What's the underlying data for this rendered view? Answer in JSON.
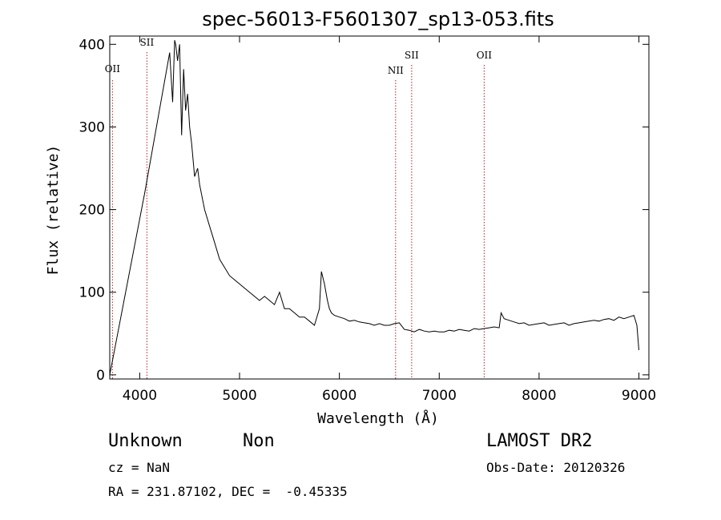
{
  "chart_data": {
    "type": "line",
    "title": "spec-56013-F5601307_sp13-053.fits",
    "xlabel": "Wavelength (Å)",
    "ylabel": "Flux (relative)",
    "xlim": [
      3700,
      9100
    ],
    "ylim": [
      -5,
      410
    ],
    "xticks": [
      4000,
      5000,
      6000,
      7000,
      8000,
      9000
    ],
    "yticks": [
      0,
      100,
      200,
      300,
      400
    ],
    "grid": false,
    "series": [
      {
        "x": [
          3700,
          4050,
          4300,
          4330,
          4350,
          4360,
          4380,
          4400,
          4420,
          4440,
          4460,
          4480,
          4500,
          4520,
          4550,
          4580,
          4600,
          4650,
          4700,
          4750,
          4800,
          4850,
          4900,
          4950,
          5000,
          5050,
          5100,
          5150,
          5200,
          5250,
          5300,
          5350,
          5400,
          5450,
          5500,
          5550,
          5600,
          5650,
          5700,
          5750,
          5800,
          5820,
          5850,
          5880,
          5900,
          5920,
          5950,
          6000,
          6050,
          6100,
          6150,
          6200,
          6250,
          6300,
          6350,
          6400,
          6450,
          6500,
          6550,
          6600,
          6650,
          6700,
          6750,
          6800,
          6850,
          6900,
          6950,
          7000,
          7050,
          7100,
          7150,
          7200,
          7250,
          7300,
          7350,
          7400,
          7450,
          7500,
          7550,
          7600,
          7620,
          7650,
          7700,
          7750,
          7800,
          7850,
          7900,
          7950,
          8000,
          8050,
          8100,
          8150,
          8200,
          8250,
          8300,
          8350,
          8400,
          8450,
          8500,
          8550,
          8600,
          8650,
          8700,
          8750,
          8800,
          8850,
          8900,
          8950,
          8980,
          9000
        ],
        "y": [
          0,
          220,
          390,
          330,
          405,
          400,
          380,
          400,
          290,
          370,
          320,
          340,
          300,
          280,
          240,
          250,
          230,
          200,
          180,
          160,
          140,
          130,
          120,
          115,
          110,
          105,
          100,
          95,
          90,
          95,
          90,
          85,
          100,
          80,
          80,
          75,
          70,
          70,
          65,
          60,
          80,
          125,
          110,
          90,
          80,
          75,
          72,
          70,
          68,
          65,
          66,
          64,
          63,
          62,
          60,
          62,
          60,
          60,
          62,
          63,
          55,
          54,
          52,
          55,
          53,
          52,
          53,
          52,
          52,
          54,
          53,
          55,
          54,
          53,
          56,
          55,
          56,
          57,
          58,
          57,
          75,
          68,
          66,
          64,
          62,
          63,
          60,
          61,
          62,
          63,
          60,
          61,
          62,
          63,
          60,
          62,
          63,
          64,
          65,
          66,
          65,
          67,
          68,
          66,
          70,
          68,
          70,
          72,
          60,
          30
        ]
      }
    ],
    "lines": [
      {
        "label": "OII",
        "x": 3727
      },
      {
        "label": "SII",
        "x": 4072
      },
      {
        "label": "NII",
        "x": 6563
      },
      {
        "label": "SII",
        "x": 6724
      },
      {
        "label": "OII",
        "x": 7450
      }
    ]
  },
  "info": {
    "class": "Unknown",
    "subclass": "Non",
    "survey": "LAMOST DR2",
    "cz": "cz = NaN",
    "obsdate": "Obs-Date: 20120326",
    "radec": "RA = 231.87102, DEC =  -0.45335"
  }
}
